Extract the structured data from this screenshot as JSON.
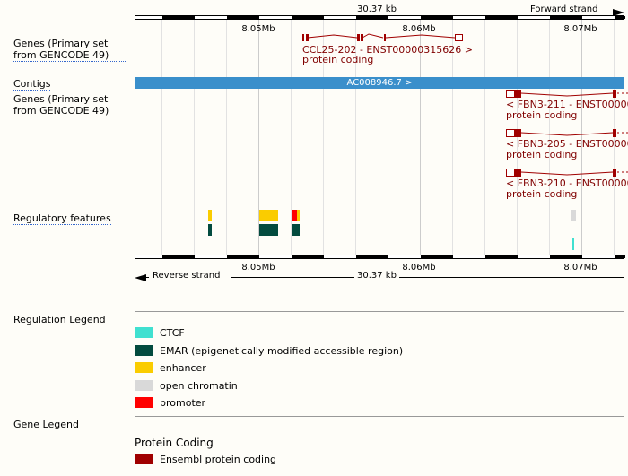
{
  "top_ruler": {
    "length": "30.37 kb",
    "strand": "Forward strand"
  },
  "bottom_ruler": {
    "length": "30.37 kb",
    "strand": "Reverse strand"
  },
  "mb_ticks": [
    "8.05Mb",
    "8.06Mb",
    "8.07Mb"
  ],
  "tracks": {
    "genes_forward": {
      "label": "Genes (Primary set from GENCODE 49)",
      "transcript": {
        "name": "CCL25-202 - ENST00000315626 >",
        "biotype": "protein coding"
      }
    },
    "contigs": {
      "label": "Contigs",
      "contig": "AC008946.7 >"
    },
    "genes_reverse": {
      "label": "Genes (Primary set from GENCODE 49)",
      "transcripts": [
        {
          "name": "< FBN3-211 - ENST00000",
          "biotype": "protein coding"
        },
        {
          "name": "< FBN3-205 - ENST00000",
          "biotype": "protein coding"
        },
        {
          "name": "< FBN3-210 - ENST00000",
          "biotype": "protein coding"
        }
      ]
    },
    "regulatory": {
      "label": "Regulatory features"
    }
  },
  "regulation_legend": {
    "title": "Regulation Legend",
    "items": [
      {
        "label": "CTCF",
        "color": "#40e0d0"
      },
      {
        "label": "EMAR (epigenetically modified accessible region)",
        "color": "#034b3f"
      },
      {
        "label": "enhancer",
        "color": "#facc00"
      },
      {
        "label": "open chromatin",
        "color": "#d9d9d9"
      },
      {
        "label": "promoter",
        "color": "#ff0000"
      }
    ]
  },
  "gene_legend": {
    "title": "Gene Legend",
    "section": "Protein Coding",
    "items": [
      {
        "label": "Ensembl protein coding",
        "color": "#a00000"
      }
    ]
  },
  "colors": {
    "gene": "#a00000",
    "contig": "#3a8fcb"
  }
}
